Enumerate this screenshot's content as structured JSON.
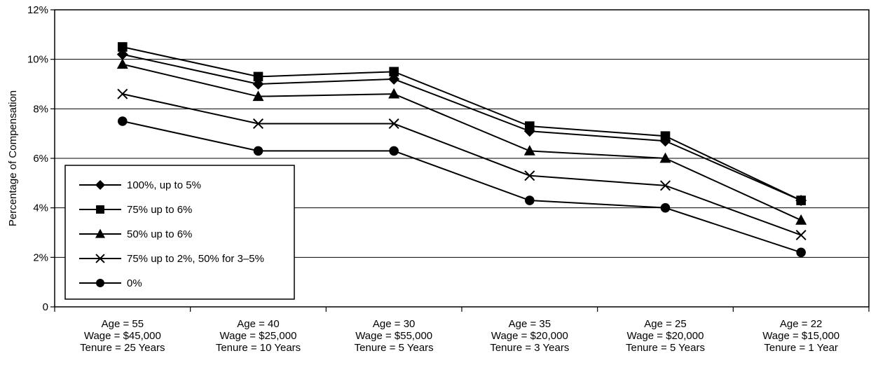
{
  "chart_data": {
    "type": "line",
    "title": "",
    "xlabel": "",
    "ylabel": "Percentage of Compensation",
    "ylim": [
      0,
      12
    ],
    "yticks": [
      {
        "value": 0,
        "label": "0"
      },
      {
        "value": 2,
        "label": "2%"
      },
      {
        "value": 4,
        "label": "4%"
      },
      {
        "value": 6,
        "label": "6%"
      },
      {
        "value": 8,
        "label": "8%"
      },
      {
        "value": 10,
        "label": "10%"
      },
      {
        "value": 12,
        "label": "12%"
      }
    ],
    "grid": "horizontal",
    "legend_position": "bottom-left",
    "categories": [
      [
        "Age = 55",
        "Wage = $45,000",
        "Tenure = 25 Years"
      ],
      [
        "Age = 40",
        "Wage = $25,000",
        "Tenure = 10 Years"
      ],
      [
        "Age = 30",
        "Wage = $55,000",
        "Tenure = 5 Years"
      ],
      [
        "Age = 35",
        "Wage = $20,000",
        "Tenure = 3 Years"
      ],
      [
        "Age = 25",
        "Wage = $20,000",
        "Tenure = 5 Years"
      ],
      [
        "Age = 22",
        "Wage = $15,000",
        "Tenure = 1 Year"
      ]
    ],
    "series": [
      {
        "name": "100%, up to 5%",
        "marker": "diamond",
        "values": [
          10.2,
          9.0,
          9.2,
          7.1,
          6.7,
          4.3
        ]
      },
      {
        "name": "75% up to 6%",
        "marker": "square",
        "values": [
          10.5,
          9.3,
          9.5,
          7.3,
          6.9,
          4.3
        ]
      },
      {
        "name": "50% up to 6%",
        "marker": "triangle",
        "values": [
          9.8,
          8.5,
          8.6,
          6.3,
          6.0,
          3.5
        ]
      },
      {
        "name": "75% up to 2%, 50% for 3–5%",
        "marker": "x",
        "values": [
          8.6,
          7.4,
          7.4,
          5.3,
          4.9,
          2.9
        ]
      },
      {
        "name": "0%",
        "marker": "circle",
        "values": [
          7.5,
          6.3,
          6.3,
          4.3,
          4.0,
          2.2
        ]
      }
    ],
    "line_color": "#000000",
    "background_color": "#ffffff"
  }
}
